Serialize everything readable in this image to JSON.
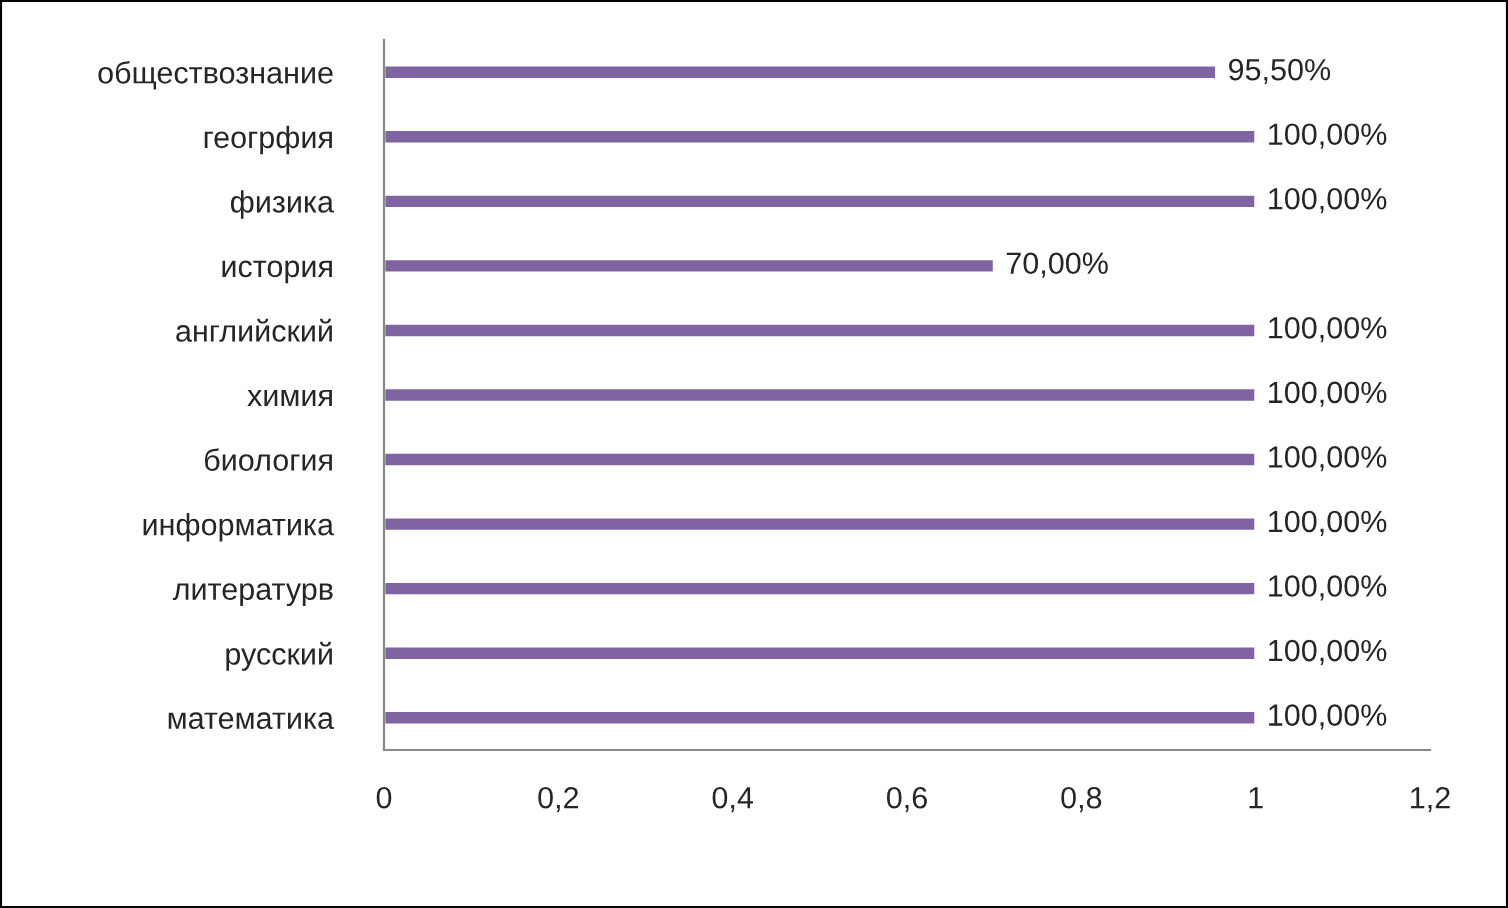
{
  "chart_data": {
    "type": "bar",
    "orientation": "horizontal",
    "categories": [
      "обществознание",
      "геогрфия",
      "физика",
      "история",
      "английский",
      "химия",
      "биология",
      "информатика",
      "литературв",
      "русский",
      "математика"
    ],
    "values": [
      0.955,
      1,
      1,
      0.7,
      1,
      1,
      1,
      1,
      1,
      1,
      1
    ],
    "value_labels": [
      "95,50%",
      "100,00%",
      "100,00%",
      "70,00%",
      "100,00%",
      "100,00%",
      "100,00%",
      "100,00%",
      "100,00%",
      "100,00%",
      "100,00%"
    ],
    "color": "#8064a2",
    "xlim": [
      0,
      1.2
    ],
    "xticks": [
      0,
      {
        "value": 0.2,
        "label": "0,2"
      },
      {
        "value": 0.4,
        "label": "0,4"
      },
      {
        "value": 0.6,
        "label": "0,6"
      },
      {
        "value": 0.8,
        "label": "0,8"
      },
      1,
      {
        "value": 1.2,
        "label": "1,2"
      }
    ],
    "grid": false,
    "legend": false
  }
}
